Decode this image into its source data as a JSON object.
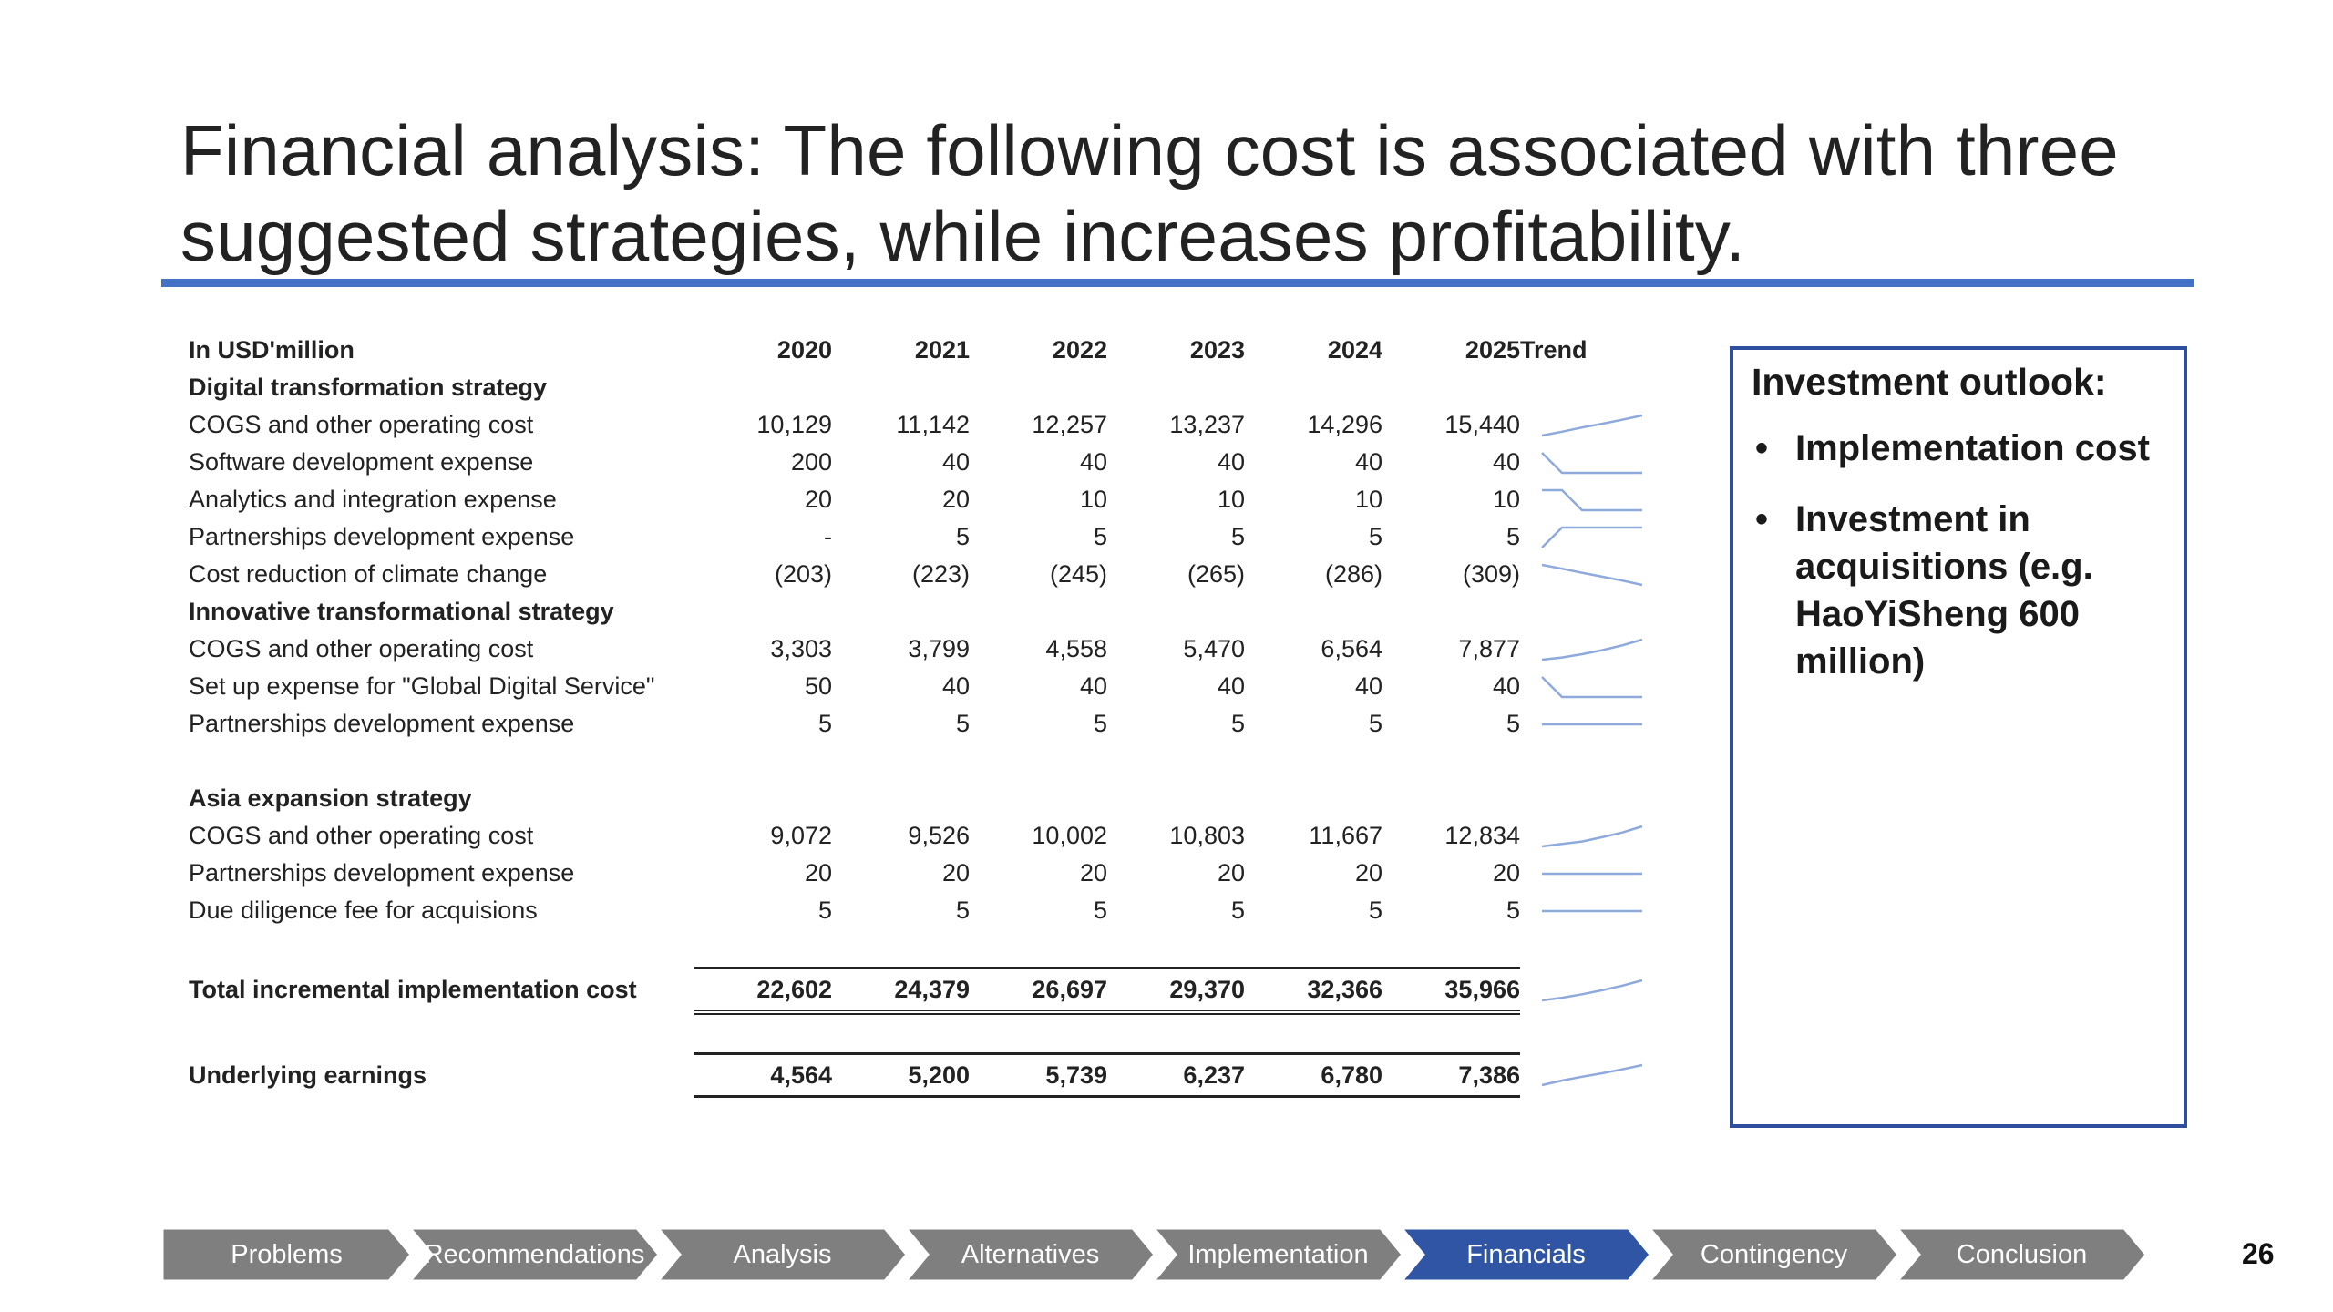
{
  "title": "Financial analysis: The following cost is associated with three suggested strategies, while increases profitability.",
  "table": {
    "unit_label": "In USD'million",
    "years": [
      "2020",
      "2021",
      "2022",
      "2023",
      "2024",
      "2025"
    ],
    "trend_label": "Trend",
    "rows": [
      {
        "type": "section",
        "label": "Digital transformation strategy"
      },
      {
        "type": "line",
        "label": "COGS and other operating cost",
        "values": [
          "10,129",
          "11,142",
          "12,257",
          "13,237",
          "14,296",
          "15,440"
        ],
        "trend": [
          10129,
          11142,
          12257,
          13237,
          14296,
          15440
        ]
      },
      {
        "type": "line",
        "label": "Software development expense",
        "values": [
          "200",
          "40",
          "40",
          "40",
          "40",
          "40"
        ],
        "trend": [
          200,
          40,
          40,
          40,
          40,
          40
        ]
      },
      {
        "type": "line",
        "label": "Analytics and integration expense",
        "values": [
          "20",
          "20",
          "10",
          "10",
          "10",
          "10"
        ],
        "trend": [
          20,
          20,
          10,
          10,
          10,
          10
        ]
      },
      {
        "type": "line",
        "label": "Partnerships development expense",
        "values": [
          "-",
          "5",
          "5",
          "5",
          "5",
          "5"
        ],
        "trend": [
          0,
          5,
          5,
          5,
          5,
          5
        ]
      },
      {
        "type": "line",
        "label": "Cost reduction of climate change",
        "values": [
          "(203)",
          "(223)",
          "(245)",
          "(265)",
          "(286)",
          "(309)"
        ],
        "trend": [
          -203,
          -223,
          -245,
          -265,
          -286,
          -309
        ]
      },
      {
        "type": "section",
        "label": "Innovative transformational strategy"
      },
      {
        "type": "line",
        "label": "COGS and other operating cost",
        "values": [
          "3,303",
          "3,799",
          "4,558",
          "5,470",
          "6,564",
          "7,877"
        ],
        "trend": [
          3303,
          3799,
          4558,
          5470,
          6564,
          7877
        ]
      },
      {
        "type": "line",
        "label": "Set up expense for \"Global Digital Service\"",
        "values": [
          "50",
          "40",
          "40",
          "40",
          "40",
          "40"
        ],
        "trend": [
          50,
          40,
          40,
          40,
          40,
          40
        ]
      },
      {
        "type": "line",
        "label": "Partnerships development expense",
        "values": [
          "5",
          "5",
          "5",
          "5",
          "5",
          "5"
        ],
        "trend": [
          5,
          5,
          5,
          5,
          5,
          5
        ]
      },
      {
        "type": "spacer"
      },
      {
        "type": "section",
        "label": "Asia expansion strategy"
      },
      {
        "type": "line",
        "label": "COGS and other operating cost",
        "values": [
          "9,072",
          "9,526",
          "10,002",
          "10,803",
          "11,667",
          "12,834"
        ],
        "trend": [
          9072,
          9526,
          10002,
          10803,
          11667,
          12834
        ]
      },
      {
        "type": "line",
        "label": "Partnerships development expense",
        "values": [
          "20",
          "20",
          "20",
          "20",
          "20",
          "20"
        ],
        "trend": [
          20,
          20,
          20,
          20,
          20,
          20
        ]
      },
      {
        "type": "line",
        "label": "Due diligence fee for acquisions",
        "values": [
          "5",
          "5",
          "5",
          "5",
          "5",
          "5"
        ],
        "trend": [
          5,
          5,
          5,
          5,
          5,
          5
        ]
      },
      {
        "type": "spacer"
      },
      {
        "type": "total",
        "label": "Total incremental implementation cost",
        "values": [
          "22,602",
          "24,379",
          "26,697",
          "29,370",
          "32,366",
          "35,966"
        ],
        "trend": [
          22602,
          24379,
          26697,
          29370,
          32366,
          35966
        ]
      },
      {
        "type": "spacer"
      },
      {
        "type": "earn",
        "label": "Underlying earnings",
        "values": [
          "4,564",
          "5,200",
          "5,739",
          "6,237",
          "6,780",
          "7,386"
        ],
        "trend": [
          4564,
          5200,
          5739,
          6237,
          6780,
          7386
        ]
      }
    ]
  },
  "outlook": {
    "heading": "Investment outlook:",
    "bullet_glyph": "•",
    "items": [
      "Implementation cost",
      "Investment in acquisitions (e.g. HaoYiSheng 600 million)"
    ]
  },
  "nav": {
    "items": [
      "Problems",
      "Recommendations",
      "Analysis",
      "Alternatives",
      "Implementation",
      "Financials",
      "Contingency",
      "Conclusion"
    ],
    "active": "Financials",
    "colors": {
      "inactive": "#7f7f7f",
      "active": "#2f55a4"
    }
  },
  "page_number": "26",
  "colors": {
    "accent": "#4472c4",
    "box_border": "#2f4f9e",
    "sparkline": "#8ea9db"
  }
}
